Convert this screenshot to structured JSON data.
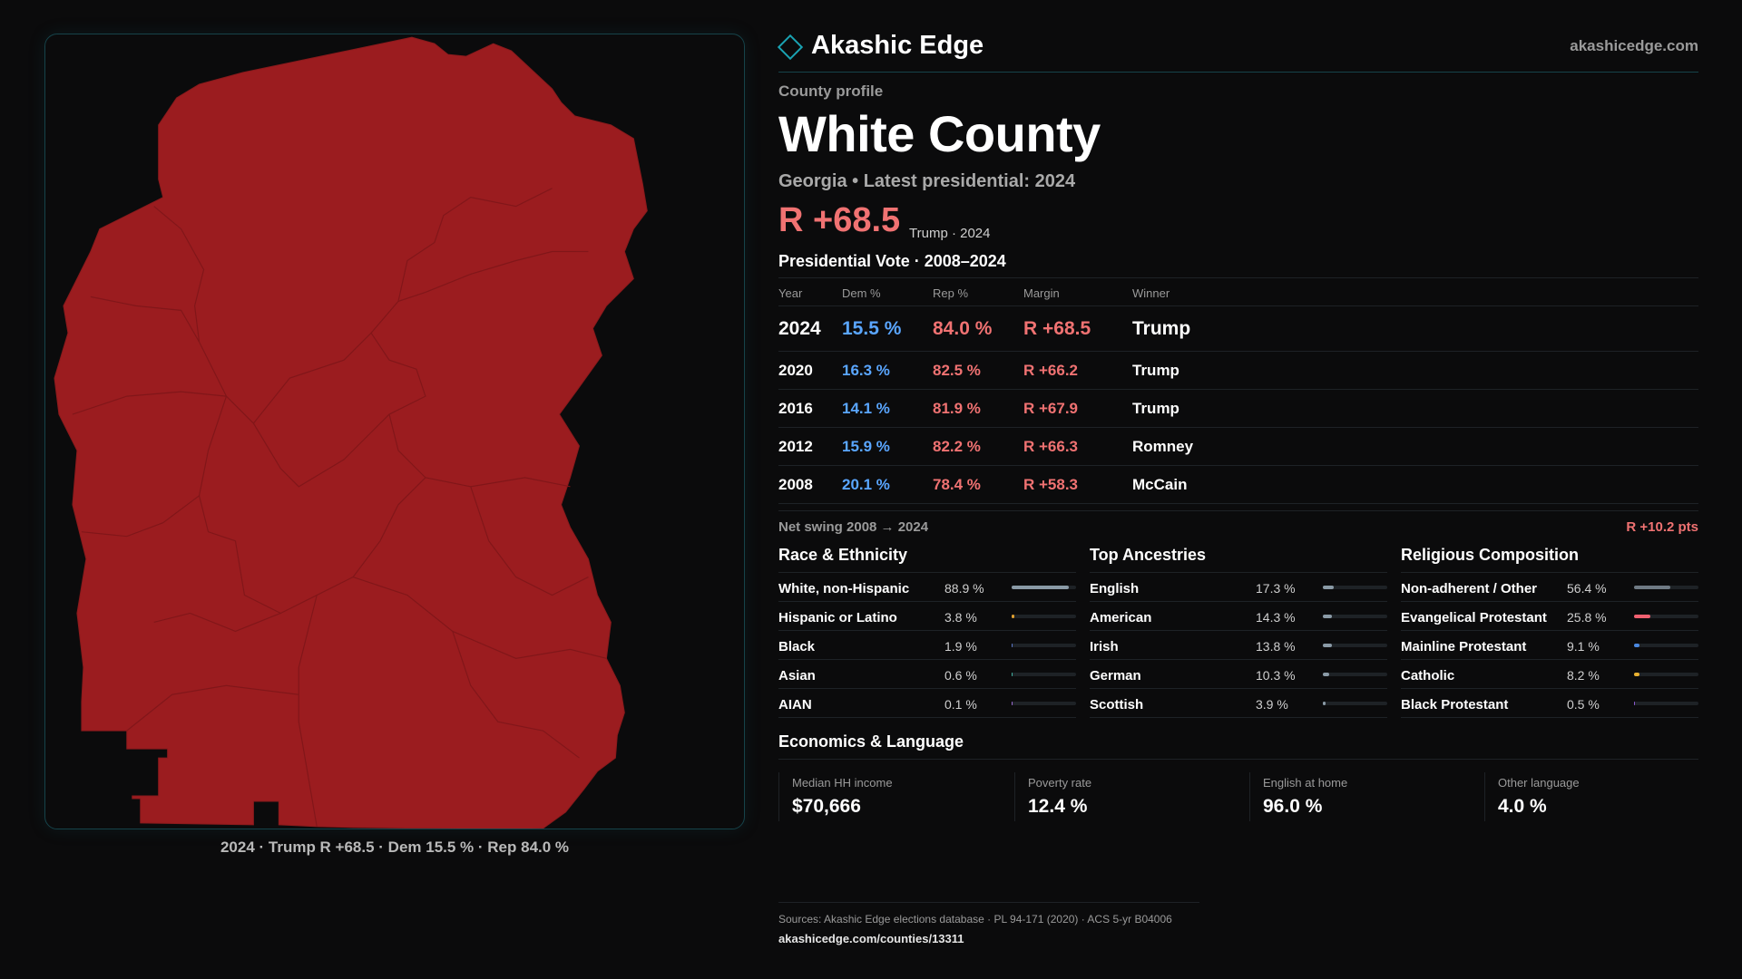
{
  "brand": {
    "name": "Akashic Edge",
    "url": "akashicedge.com"
  },
  "profile": {
    "kicker": "County profile",
    "title": "White County",
    "subtitle": "Georgia • Latest presidential: 2024",
    "margin": "R +68.5",
    "margin_note": "Trump · 2024"
  },
  "map": {
    "caption": "2024 · Trump R +68.5 · Dem 15.5 % · Rep 84.0 %",
    "fill_color": "#9b1c1f",
    "border_color": "#8a1a1c"
  },
  "vote_table": {
    "title": "Presidential Vote · 2008–2024",
    "headers": {
      "year": "Year",
      "dem": "Dem %",
      "rep": "Rep %",
      "margin": "Margin",
      "winner": "Winner"
    },
    "rows": [
      {
        "year": "2024",
        "dem": "15.5 %",
        "rep": "84.0 %",
        "margin": "R +68.5",
        "winner": "Trump"
      },
      {
        "year": "2020",
        "dem": "16.3 %",
        "rep": "82.5 %",
        "margin": "R +66.2",
        "winner": "Trump"
      },
      {
        "year": "2016",
        "dem": "14.1 %",
        "rep": "81.9 %",
        "margin": "R +67.9",
        "winner": "Trump"
      },
      {
        "year": "2012",
        "dem": "15.9 %",
        "rep": "82.2 %",
        "margin": "R +66.3",
        "winner": "Romney"
      },
      {
        "year": "2008",
        "dem": "20.1 %",
        "rep": "78.4 %",
        "margin": "R +58.3",
        "winner": "McCain"
      }
    ]
  },
  "swing": {
    "label": "Net swing 2008 → 2024",
    "value": "R +10.2 pts"
  },
  "race": {
    "title": "Race & Ethnicity",
    "items": [
      {
        "name": "White, non-Hispanic",
        "pct": "88.9 %",
        "value": 88.9,
        "color": "#8a9aa6"
      },
      {
        "name": "Hispanic or Latino",
        "pct": "3.8 %",
        "value": 3.8,
        "color": "#e0a030"
      },
      {
        "name": "Black",
        "pct": "1.9 %",
        "value": 1.9,
        "color": "#5a78c8"
      },
      {
        "name": "Asian",
        "pct": "0.6 %",
        "value": 0.6,
        "color": "#40b0a0"
      },
      {
        "name": "AIAN",
        "pct": "0.1 %",
        "value": 0.1,
        "color": "#9a6ad0"
      }
    ]
  },
  "ancestry": {
    "title": "Top Ancestries",
    "items": [
      {
        "name": "English",
        "pct": "17.3 %",
        "value": 17.3,
        "color": "#8a9aa6"
      },
      {
        "name": "American",
        "pct": "14.3 %",
        "value": 14.3,
        "color": "#8a9aa6"
      },
      {
        "name": "Irish",
        "pct": "13.8 %",
        "value": 13.8,
        "color": "#8a9aa6"
      },
      {
        "name": "German",
        "pct": "10.3 %",
        "value": 10.3,
        "color": "#8a9aa6"
      },
      {
        "name": "Scottish",
        "pct": "3.9 %",
        "value": 3.9,
        "color": "#8a9aa6"
      }
    ]
  },
  "religion": {
    "title": "Religious Composition",
    "items": [
      {
        "name": "Non-adherent / Other",
        "pct": "56.4 %",
        "value": 56.4,
        "color": "#6f7a84"
      },
      {
        "name": "Evangelical Protestant",
        "pct": "25.8 %",
        "value": 25.8,
        "color": "#f06070"
      },
      {
        "name": "Mainline Protestant",
        "pct": "9.1 %",
        "value": 9.1,
        "color": "#4a88e0"
      },
      {
        "name": "Catholic",
        "pct": "8.2 %",
        "value": 8.2,
        "color": "#e8b030"
      },
      {
        "name": "Black Protestant",
        "pct": "0.5 %",
        "value": 0.5,
        "color": "#8a5ad0"
      }
    ]
  },
  "economics": {
    "title": "Economics & Language",
    "items": [
      {
        "label": "Median HH income",
        "value": "$70,666"
      },
      {
        "label": "Poverty rate",
        "value": "12.4 %"
      },
      {
        "label": "English at home",
        "value": "96.0 %"
      },
      {
        "label": "Other language",
        "value": "4.0 %"
      }
    ]
  },
  "footer": {
    "sources": "Sources: Akashic Edge elections database · PL 94-171 (2020) · ACS 5-yr B04006",
    "link": "akashicedge.com/counties/13311"
  }
}
